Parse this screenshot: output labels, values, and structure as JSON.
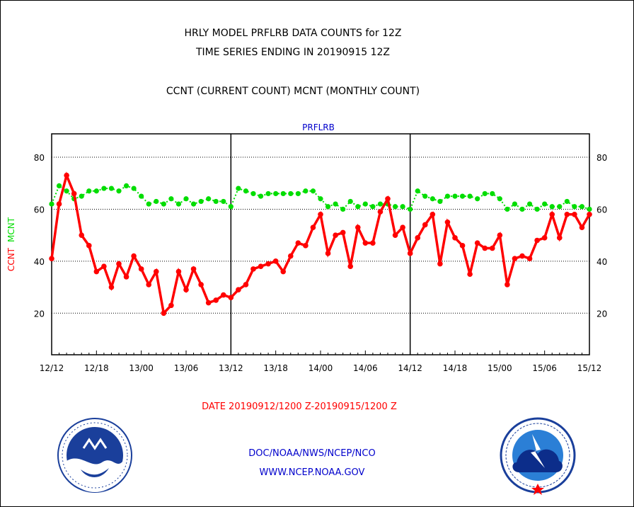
{
  "header": {
    "line1": "HRLY MODEL PRFLRB DATA COUNTS for 12Z",
    "line2": "TIME SERIES ENDING IN 20190915 12Z",
    "line3": "CCNT (CURRENT COUNT) MCNT (MONTHLY COUNT)"
  },
  "footer": {
    "date_range": "DATE 20190912/1200 Z-20190915/1200 Z",
    "org": "DOC/NOAA/NWS/NCEP/NCO",
    "url": "WWW.NCEP.NOAA.GOV"
  },
  "colors": {
    "ccnt": "#ff0000",
    "mcnt": "#00dd00",
    "text": "#000000",
    "link": "#0000cc",
    "footer_red": "#ff0000"
  },
  "chart_data": {
    "type": "line",
    "title": "PRFLRB",
    "ylabel_parts": [
      {
        "text": "CCNT",
        "color": "#ff0000"
      },
      {
        "text": "MCNT",
        "color": "#00dd00"
      }
    ],
    "xlabel": "",
    "ylim": [
      4,
      89
    ],
    "yticks": [
      20,
      40,
      60,
      80
    ],
    "x_hours_range": [
      0,
      72
    ],
    "xtick_labels": [
      "12/12",
      "12/18",
      "13/00",
      "13/06",
      "13/12",
      "13/18",
      "14/00",
      "14/06",
      "14/12",
      "14/18",
      "15/00",
      "15/06",
      "15/12"
    ],
    "xtick_hours": [
      0,
      6,
      12,
      18,
      24,
      30,
      36,
      42,
      48,
      54,
      60,
      66,
      72
    ],
    "day_separators_hours": [
      24,
      48
    ],
    "grid": "horizontal dotted",
    "legend": "none (series names on left axis)",
    "series": [
      {
        "name": "CCNT",
        "color": "#ff0000",
        "values": [
          41,
          62,
          73,
          66,
          50,
          46,
          36,
          38,
          30,
          39,
          34,
          42,
          37,
          31,
          36,
          20,
          23,
          36,
          29,
          37,
          31,
          24,
          25,
          27,
          26,
          29,
          31,
          37,
          38,
          39,
          40,
          36,
          42,
          47,
          46,
          53,
          58,
          43,
          50,
          51,
          38,
          53,
          47,
          47,
          59,
          64,
          50,
          53,
          43,
          49,
          54,
          58,
          39,
          55,
          49,
          46,
          35,
          47,
          45,
          45,
          50,
          31,
          41,
          42,
          41,
          48,
          49,
          58,
          49,
          58,
          58,
          53,
          58
        ]
      },
      {
        "name": "MCNT",
        "color": "#00dd00",
        "values": [
          62,
          69,
          67,
          64,
          65,
          67,
          67,
          68,
          68,
          67,
          69,
          68,
          65,
          62,
          63,
          62,
          64,
          62,
          64,
          62,
          63,
          64,
          63,
          63,
          61,
          68,
          67,
          66,
          65,
          66,
          66,
          66,
          66,
          66,
          67,
          67,
          64,
          61,
          62,
          60,
          63,
          61,
          62,
          61,
          62,
          62,
          61,
          61,
          60,
          67,
          65,
          64,
          63,
          65,
          65,
          65,
          65,
          64,
          66,
          66,
          64,
          60,
          62,
          60,
          62,
          60,
          62,
          61,
          61,
          63,
          61,
          61,
          60
        ]
      }
    ]
  }
}
